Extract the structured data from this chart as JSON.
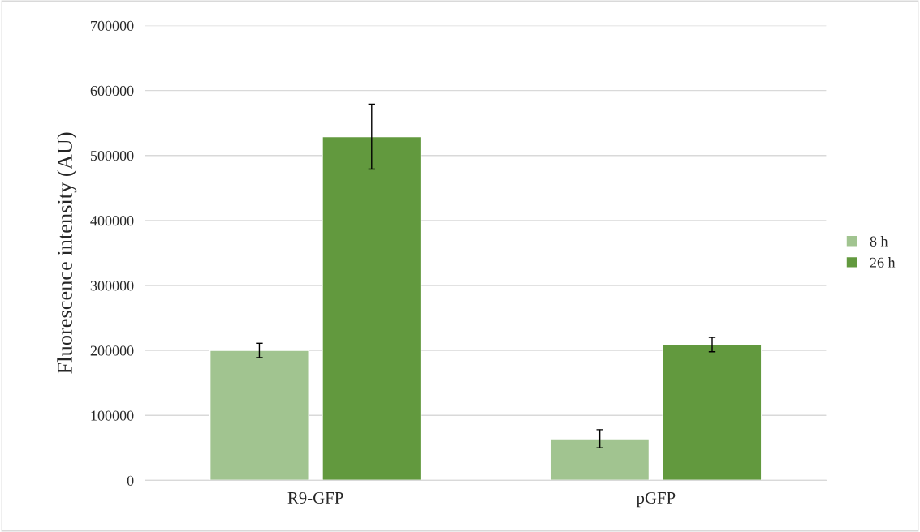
{
  "chart_data": {
    "type": "bar",
    "ylabel": "Fluorescence intensity (AU)",
    "categories": [
      "R9-GFP",
      "pGFP"
    ],
    "series": [
      {
        "name": "8 h",
        "color": "#a1c490",
        "values": [
          200000,
          64000
        ],
        "errors": [
          11000,
          14000
        ]
      },
      {
        "name": "26 h",
        "color": "#62993e",
        "values": [
          529000,
          209000
        ],
        "errors": [
          50000,
          11000
        ]
      }
    ],
    "ylim": [
      0,
      700000
    ],
    "yticks": [
      0,
      100000,
      200000,
      300000,
      400000,
      500000,
      600000,
      700000
    ],
    "grid": "y",
    "legend": "right"
  }
}
